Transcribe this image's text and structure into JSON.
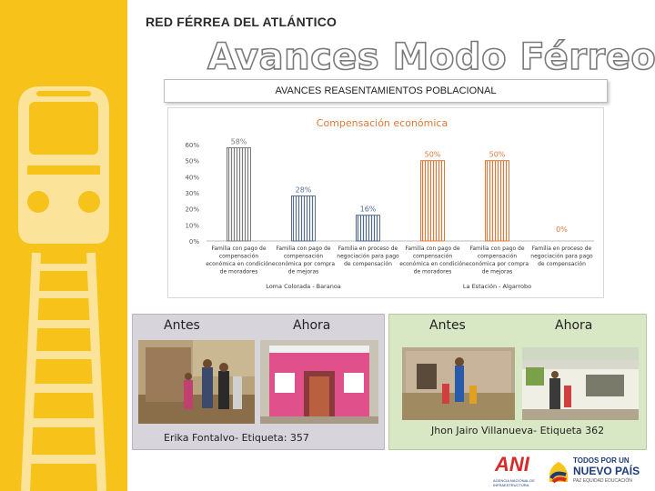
{
  "header": {
    "company": "RED FÉRREA DEL ATLÁNTICO",
    "title": "Avances Modo Férreo",
    "subtitle": "AVANCES REASENTAMIENTOS POBLACIONAL"
  },
  "chart_data": {
    "type": "bar",
    "title": "Compensación económica",
    "ylim": [
      0,
      60
    ],
    "y_ticks": [
      "0%",
      "10%",
      "20%",
      "30%",
      "40%",
      "50%",
      "60%"
    ],
    "groups": [
      {
        "name": "Loma Colorada - Baranoa",
        "categories": [
          {
            "lines": [
              "Familia con pago de",
              "compensación",
              "económica en condición",
              "de moradores"
            ],
            "value": 58,
            "label": "58%",
            "color": "#7a7a7a"
          },
          {
            "lines": [
              "Familia con pago de",
              "compensación",
              "económica por compra",
              "de mejoras"
            ],
            "value": 28,
            "label": "28%",
            "color": "#5a6f8a"
          },
          {
            "lines": [
              "Familia en proceso de",
              "negociación para pago",
              "de compensación"
            ],
            "value": 16,
            "label": "16%",
            "color": "#506a8c"
          }
        ]
      },
      {
        "name": "La Estación - Algarrobo",
        "categories": [
          {
            "lines": [
              "Familia con pago de",
              "compensación",
              "económica en condición",
              "de moradores"
            ],
            "value": 50,
            "label": "50%",
            "color": "#e0783a"
          },
          {
            "lines": [
              "Familia con pago de",
              "compensación",
              "económica por compra",
              "de mejoras"
            ],
            "value": 50,
            "label": "50%",
            "color": "#e0783a"
          },
          {
            "lines": [
              "Familia en proceso de",
              "negociación para pago",
              "de compensación"
            ],
            "value": 0,
            "label": "0%",
            "color": "#e0783a"
          }
        ]
      }
    ],
    "grid": false,
    "legend": "none"
  },
  "panels": {
    "left": {
      "before": "Antes",
      "after": "Ahora",
      "caption": "Erika Fontalvo- Etiqueta: 357"
    },
    "right": {
      "before": "Antes",
      "after": "Ahora",
      "caption": "Jhon Jairo Villanueva- Etiqueta 362"
    }
  },
  "logos": {
    "ani": "ANI",
    "ani_sub": "AGENCIA NACIONAL DE INFRAESTRUCTURA",
    "gov_line1": "TODOS POR UN",
    "gov_line2": "NUEVO PAÍS",
    "gov_line3": "PAZ EQUIDAD EDUCACIÓN"
  },
  "colors": {
    "sidebar": "#f7c21a",
    "chart_title": "#e0783a",
    "logo_navy": "#1d3a7a"
  }
}
